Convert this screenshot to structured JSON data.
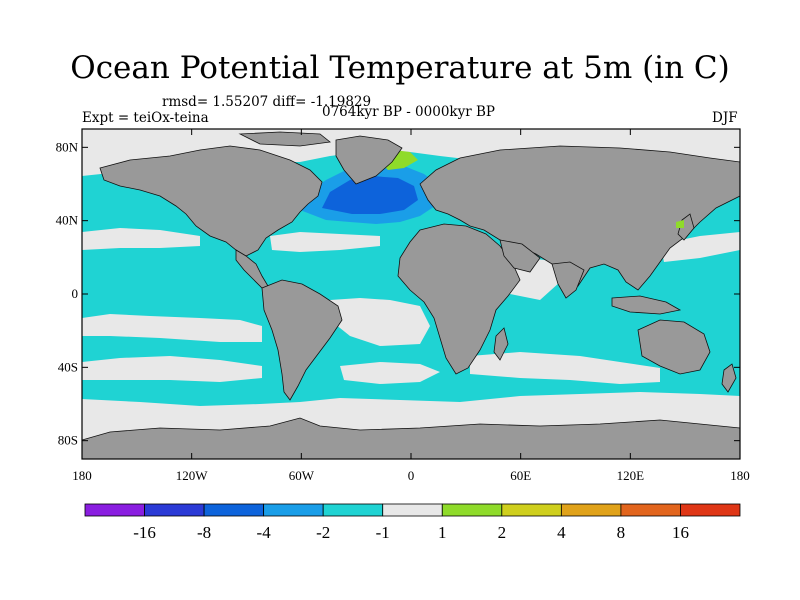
{
  "title": "Ocean Potential Temperature at 5m (in C)",
  "stats": "rmsd= 1.55207 diff= -1.19829",
  "experiment": "Expt = teiOx-teina",
  "time_range": "0764kyr BP - 0000kyr BP",
  "season": "DJF",
  "map": {
    "projection": "cylindrical-equidistant",
    "lon_range": [
      -180,
      180
    ],
    "lat_range": [
      -90,
      90
    ],
    "land_color": "#999999",
    "ocean_default_color": "#1fd3d3",
    "x_ticks": [
      {
        "lon": -180,
        "label": "180"
      },
      {
        "lon": -120,
        "label": "120W"
      },
      {
        "lon": -60,
        "label": "60W"
      },
      {
        "lon": 0,
        "label": "0"
      },
      {
        "lon": 60,
        "label": "60E"
      },
      {
        "lon": 120,
        "label": "120E"
      },
      {
        "lon": 180,
        "label": "180"
      }
    ],
    "y_ticks": [
      {
        "lat": 80,
        "label": "80N"
      },
      {
        "lat": 40,
        "label": "40N"
      },
      {
        "lat": 0,
        "label": "0"
      },
      {
        "lat": -40,
        "label": "40S"
      },
      {
        "lat": -80,
        "label": "80S"
      }
    ],
    "anomaly_regions": [
      {
        "name": "arctic-ocean",
        "bin": "-1 to 1",
        "color": "#e8e8e8"
      },
      {
        "name": "southern-ocean-edge",
        "bin": "-1 to 1",
        "color": "#e8e8e8"
      },
      {
        "name": "north-atlantic-deep-cooling",
        "bin": "-8 to -4",
        "color": "#0d63db"
      },
      {
        "name": "north-atlantic-cooling",
        "bin": "-4 to -2",
        "color": "#1a9ee8"
      },
      {
        "name": "greenland-warming",
        "bin": "1 to 2",
        "color": "#8fdb2a"
      },
      {
        "name": "equatorial-pacific",
        "bin": "-1 to 1",
        "color": "#e8e8e8"
      },
      {
        "name": "equatorial-atlantic",
        "bin": "-1 to 1",
        "color": "#e8e8e8"
      },
      {
        "name": "arabian-sea",
        "bin": "-1 to 1",
        "color": "#e8e8e8"
      },
      {
        "name": "south-pacific-band",
        "bin": "-1 to 1",
        "color": "#e8e8e8"
      },
      {
        "name": "south-indian-band",
        "bin": "-1 to 1",
        "color": "#e8e8e8"
      }
    ]
  },
  "colorbar": {
    "bins": [
      {
        "color": "#8a1ee0",
        "range": "< -16"
      },
      {
        "color": "#2b3ad6",
        "range": "-16 to -8"
      },
      {
        "color": "#0d63db",
        "range": "-8 to -4"
      },
      {
        "color": "#1a9ee8",
        "range": "-4 to -2"
      },
      {
        "color": "#1fd3d3",
        "range": "-2 to -1"
      },
      {
        "color": "#e8e8e8",
        "range": "-1 to 1"
      },
      {
        "color": "#8fdb2a",
        "range": "1 to 2"
      },
      {
        "color": "#cfcf1d",
        "range": "2 to 4"
      },
      {
        "color": "#e0a21a",
        "range": "4 to 8"
      },
      {
        "color": "#e2651d",
        "range": "8 to 16"
      },
      {
        "color": "#df3616",
        "range": "> 16"
      }
    ],
    "labels": [
      "-16",
      "-8",
      "-4",
      "-2",
      "-1",
      "1",
      "2",
      "4",
      "8",
      "16"
    ]
  }
}
